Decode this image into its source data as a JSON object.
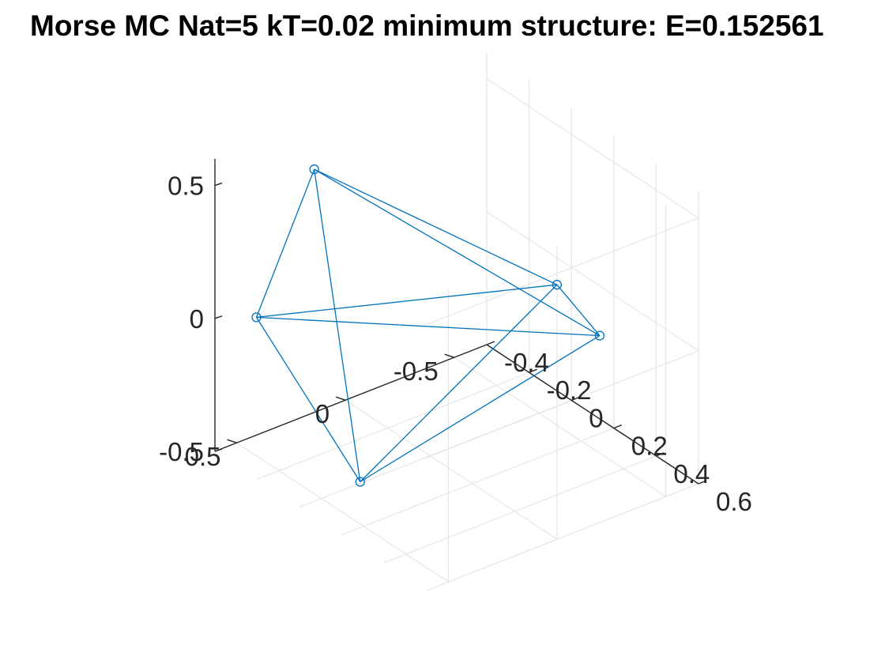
{
  "chart_data": {
    "type": "scatter3d",
    "title": "Morse MC Nat=5 kT=0.02 minimum structure: E=0.152561",
    "xlabel": "",
    "ylabel": "",
    "zlabel": "",
    "grid": true,
    "marker": "circle",
    "line_color": "#0072BD",
    "xlim": [
      -0.4,
      0.6
    ],
    "ylim": [
      -0.65,
      0.6
    ],
    "zlim": [
      -0.5,
      0.6
    ],
    "xticks": [
      -0.4,
      -0.2,
      0,
      0.2,
      0.4,
      0.6
    ],
    "xtick_labels": [
      "-0.4",
      "-0.2",
      "0",
      "0.2",
      "0.4",
      "0.6"
    ],
    "yticks": [
      -0.5,
      0,
      0.5
    ],
    "ytick_labels": [
      "-0.5",
      "0",
      "0.5"
    ],
    "zticks": [
      -0.5,
      0,
      0.5
    ],
    "ztick_labels": [
      "-0.5",
      "0",
      "0.5"
    ],
    "points": [
      {
        "x": -0.356,
        "y": 0.186,
        "z": 0.451
      },
      {
        "x": -0.278,
        "y": 0.528,
        "z": 0.045
      },
      {
        "x": 0.554,
        "y": -0.044,
        "z": 0.419
      },
      {
        "x": 0.321,
        "y": -0.467,
        "z": -0.03
      },
      {
        "x": 0.02,
        "y": 0.341,
        "z": -0.478
      }
    ],
    "edges": [
      [
        0,
        1
      ],
      [
        0,
        2
      ],
      [
        0,
        3
      ],
      [
        0,
        4
      ],
      [
        1,
        2
      ],
      [
        1,
        3
      ],
      [
        1,
        4
      ],
      [
        2,
        3
      ],
      [
        2,
        4
      ],
      [
        3,
        4
      ]
    ]
  }
}
